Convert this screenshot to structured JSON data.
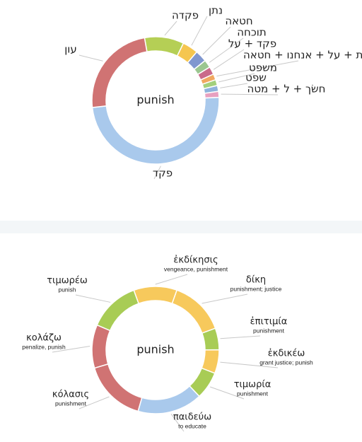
{
  "chart_data": [
    {
      "type": "donut",
      "center_label": "punish",
      "categories": [
        "פקדה",
        "נתן",
        "חטאה",
        "תוכחה",
        "פקד + על",
        "שׂת + על + אנחנו + חטאה",
        "משפט",
        "שפט",
        "חשׂך + ל + מטה",
        "פקד",
        "עון"
      ],
      "values": [
        10,
        4,
        3,
        2,
        2,
        1.5,
        1.5,
        1.5,
        1.5,
        49,
        24
      ],
      "colors": [
        "#b5cf55",
        "#f5c64f",
        "#8097cf",
        "#9bc690",
        "#c96a8a",
        "#f0a860",
        "#a3d07c",
        "#8fb3dc",
        "#e8a0c0",
        "#a9c9ec",
        "#d07373"
      ]
    },
    {
      "type": "donut",
      "center_label": "punish",
      "categories": [
        "ἐκδίκησις",
        "δίκη",
        "ἐπιτιμία",
        "ἐκδικέω",
        "τιμωρία",
        "παιδεύω",
        "κόλασις",
        "κολάζω",
        "τιμωρέω"
      ],
      "descriptions": [
        "vengeance, punishment",
        "punishment; justice",
        "punishment",
        "grant justice; punish",
        "punishment",
        "to educate",
        "punishment",
        "penalize, punish",
        "punish"
      ],
      "values": [
        11,
        14,
        5.5,
        6,
        7,
        16.5,
        16,
        11,
        13
      ],
      "colors": [
        "#f7c95c",
        "#f7c95c",
        "#a8cc55",
        "#f7c95c",
        "#a8cc55",
        "#a9c9ec",
        "#d07373",
        "#d07373",
        "#a8cc55"
      ]
    }
  ]
}
